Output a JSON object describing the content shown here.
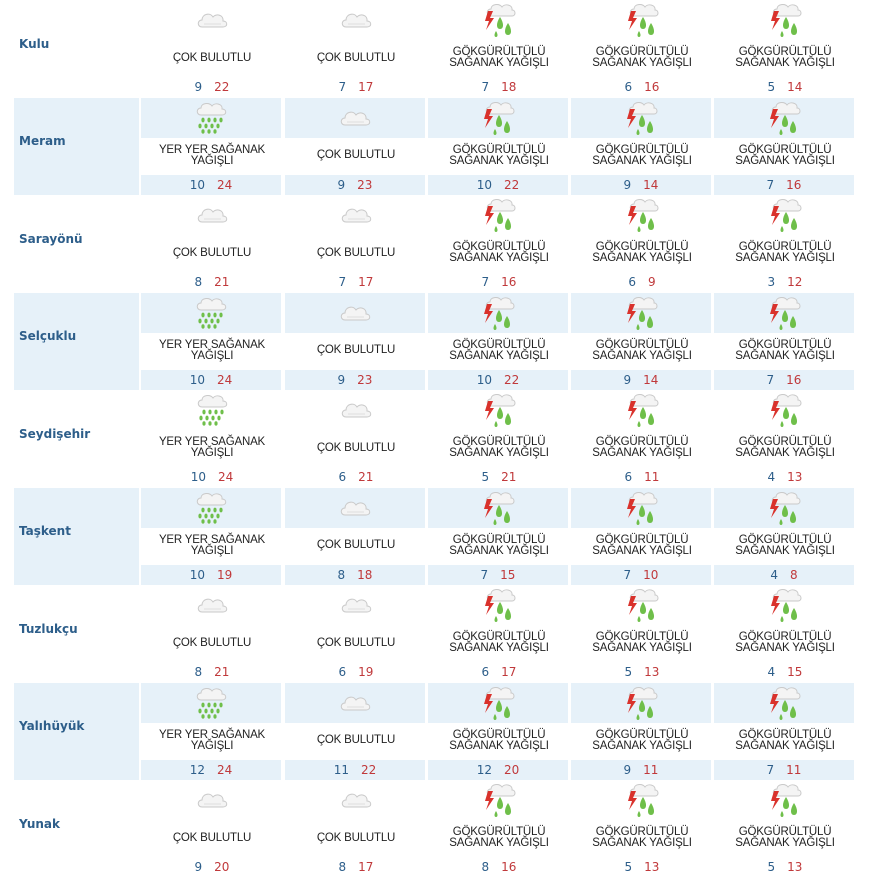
{
  "conditions": {
    "cloudy": "ÇOK BULUTLU",
    "thunder": "GÖKGÜRÜLTÜLÜ SAĞANAK YAĞIŞLI",
    "showers": "YER YER SAĞANAK YAĞIŞLI"
  },
  "icons": {
    "cloudy": "cloud-icon",
    "thunder": "thunderstorm-icon",
    "showers": "rain-showers-icon"
  },
  "colors": {
    "shade": "#e6f1f9",
    "name": "#2d5e8a",
    "min": "#2d5e8a",
    "max": "#c0393b"
  },
  "rows": [
    {
      "name": "Kulu",
      "days": [
        {
          "cond": "ÇOK BULUTLU",
          "icon": "cloudy",
          "min": "9",
          "max": "22"
        },
        {
          "cond": "ÇOK BULUTLU",
          "icon": "cloudy",
          "min": "7",
          "max": "17"
        },
        {
          "cond": "GÖKGÜRÜLTÜLÜ SAĞANAK YAĞIŞLI",
          "icon": "thunder",
          "min": "7",
          "max": "18"
        },
        {
          "cond": "GÖKGÜRÜLTÜLÜ SAĞANAK YAĞIŞLI",
          "icon": "thunder",
          "min": "6",
          "max": "16"
        },
        {
          "cond": "GÖKGÜRÜLTÜLÜ SAĞANAK YAĞIŞLI",
          "icon": "thunder",
          "min": "5",
          "max": "14"
        }
      ]
    },
    {
      "name": "Meram",
      "days": [
        {
          "cond": "YER YER SAĞANAK YAĞIŞLI",
          "icon": "showers",
          "min": "10",
          "max": "24"
        },
        {
          "cond": "ÇOK BULUTLU",
          "icon": "cloudy",
          "min": "9",
          "max": "23"
        },
        {
          "cond": "GÖKGÜRÜLTÜLÜ SAĞANAK YAĞIŞLI",
          "icon": "thunder",
          "min": "10",
          "max": "22"
        },
        {
          "cond": "GÖKGÜRÜLTÜLÜ SAĞANAK YAĞIŞLI",
          "icon": "thunder",
          "min": "9",
          "max": "14"
        },
        {
          "cond": "GÖKGÜRÜLTÜLÜ SAĞANAK YAĞIŞLI",
          "icon": "thunder",
          "min": "7",
          "max": "16"
        }
      ]
    },
    {
      "name": "Sarayönü",
      "days": [
        {
          "cond": "ÇOK BULUTLU",
          "icon": "cloudy",
          "min": "8",
          "max": "21"
        },
        {
          "cond": "ÇOK BULUTLU",
          "icon": "cloudy",
          "min": "7",
          "max": "17"
        },
        {
          "cond": "GÖKGÜRÜLTÜLÜ SAĞANAK YAĞIŞLI",
          "icon": "thunder",
          "min": "7",
          "max": "16"
        },
        {
          "cond": "GÖKGÜRÜLTÜLÜ SAĞANAK YAĞIŞLI",
          "icon": "thunder",
          "min": "6",
          "max": "9"
        },
        {
          "cond": "GÖKGÜRÜLTÜLÜ SAĞANAK YAĞIŞLI",
          "icon": "thunder",
          "min": "3",
          "max": "12"
        }
      ]
    },
    {
      "name": "Selçuklu",
      "days": [
        {
          "cond": "YER YER SAĞANAK YAĞIŞLI",
          "icon": "showers",
          "min": "10",
          "max": "24"
        },
        {
          "cond": "ÇOK BULUTLU",
          "icon": "cloudy",
          "min": "9",
          "max": "23"
        },
        {
          "cond": "GÖKGÜRÜLTÜLÜ SAĞANAK YAĞIŞLI",
          "icon": "thunder",
          "min": "10",
          "max": "22"
        },
        {
          "cond": "GÖKGÜRÜLTÜLÜ SAĞANAK YAĞIŞLI",
          "icon": "thunder",
          "min": "9",
          "max": "14"
        },
        {
          "cond": "GÖKGÜRÜLTÜLÜ SAĞANAK YAĞIŞLI",
          "icon": "thunder",
          "min": "7",
          "max": "16"
        }
      ]
    },
    {
      "name": "Seydişehir",
      "days": [
        {
          "cond": "YER YER SAĞANAK YAĞIŞLI",
          "icon": "showers",
          "min": "10",
          "max": "24"
        },
        {
          "cond": "ÇOK BULUTLU",
          "icon": "cloudy",
          "min": "6",
          "max": "21"
        },
        {
          "cond": "GÖKGÜRÜLTÜLÜ SAĞANAK YAĞIŞLI",
          "icon": "thunder",
          "min": "5",
          "max": "21"
        },
        {
          "cond": "GÖKGÜRÜLTÜLÜ SAĞANAK YAĞIŞLI",
          "icon": "thunder",
          "min": "6",
          "max": "11"
        },
        {
          "cond": "GÖKGÜRÜLTÜLÜ SAĞANAK YAĞIŞLI",
          "icon": "thunder",
          "min": "4",
          "max": "13"
        }
      ]
    },
    {
      "name": "Taşkent",
      "days": [
        {
          "cond": "YER YER SAĞANAK YAĞIŞLI",
          "icon": "showers",
          "min": "10",
          "max": "19"
        },
        {
          "cond": "ÇOK BULUTLU",
          "icon": "cloudy",
          "min": "8",
          "max": "18"
        },
        {
          "cond": "GÖKGÜRÜLTÜLÜ SAĞANAK YAĞIŞLI",
          "icon": "thunder",
          "min": "7",
          "max": "15"
        },
        {
          "cond": "GÖKGÜRÜLTÜLÜ SAĞANAK YAĞIŞLI",
          "icon": "thunder",
          "min": "7",
          "max": "10"
        },
        {
          "cond": "GÖKGÜRÜLTÜLÜ SAĞANAK YAĞIŞLI",
          "icon": "thunder",
          "min": "4",
          "max": "8"
        }
      ]
    },
    {
      "name": "Tuzlukçu",
      "days": [
        {
          "cond": "ÇOK BULUTLU",
          "icon": "cloudy",
          "min": "8",
          "max": "21"
        },
        {
          "cond": "ÇOK BULUTLU",
          "icon": "cloudy",
          "min": "6",
          "max": "19"
        },
        {
          "cond": "GÖKGÜRÜLTÜLÜ SAĞANAK YAĞIŞLI",
          "icon": "thunder",
          "min": "6",
          "max": "17"
        },
        {
          "cond": "GÖKGÜRÜLTÜLÜ SAĞANAK YAĞIŞLI",
          "icon": "thunder",
          "min": "5",
          "max": "13"
        },
        {
          "cond": "GÖKGÜRÜLTÜLÜ SAĞANAK YAĞIŞLI",
          "icon": "thunder",
          "min": "4",
          "max": "15"
        }
      ]
    },
    {
      "name": "Yalıhüyük",
      "days": [
        {
          "cond": "YER YER SAĞANAK YAĞIŞLI",
          "icon": "showers",
          "min": "12",
          "max": "24"
        },
        {
          "cond": "ÇOK BULUTLU",
          "icon": "cloudy",
          "min": "11",
          "max": "22"
        },
        {
          "cond": "GÖKGÜRÜLTÜLÜ SAĞANAK YAĞIŞLI",
          "icon": "thunder",
          "min": "12",
          "max": "20"
        },
        {
          "cond": "GÖKGÜRÜLTÜLÜ SAĞANAK YAĞIŞLI",
          "icon": "thunder",
          "min": "9",
          "max": "11"
        },
        {
          "cond": "GÖKGÜRÜLTÜLÜ SAĞANAK YAĞIŞLI",
          "icon": "thunder",
          "min": "7",
          "max": "11"
        }
      ]
    },
    {
      "name": "Yunak",
      "days": [
        {
          "cond": "ÇOK BULUTLU",
          "icon": "cloudy",
          "min": "9",
          "max": "20"
        },
        {
          "cond": "ÇOK BULUTLU",
          "icon": "cloudy",
          "min": "8",
          "max": "17"
        },
        {
          "cond": "GÖKGÜRÜLTÜLÜ SAĞANAK YAĞIŞLI",
          "icon": "thunder",
          "min": "8",
          "max": "16"
        },
        {
          "cond": "GÖKGÜRÜLTÜLÜ SAĞANAK YAĞIŞLI",
          "icon": "thunder",
          "min": "5",
          "max": "13"
        },
        {
          "cond": "GÖKGÜRÜLTÜLÜ SAĞANAK YAĞIŞLI",
          "icon": "thunder",
          "min": "5",
          "max": "13"
        }
      ]
    }
  ]
}
